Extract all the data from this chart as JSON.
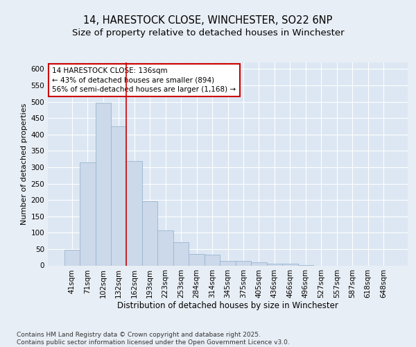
{
  "title": "14, HARESTOCK CLOSE, WINCHESTER, SO22 6NP",
  "subtitle": "Size of property relative to detached houses in Winchester",
  "xlabel": "Distribution of detached houses by size in Winchester",
  "ylabel": "Number of detached properties",
  "categories": [
    "41sqm",
    "71sqm",
    "102sqm",
    "132sqm",
    "162sqm",
    "193sqm",
    "223sqm",
    "253sqm",
    "284sqm",
    "314sqm",
    "345sqm",
    "375sqm",
    "405sqm",
    "436sqm",
    "466sqm",
    "496sqm",
    "527sqm",
    "557sqm",
    "587sqm",
    "618sqm",
    "648sqm"
  ],
  "values": [
    47,
    314,
    498,
    424,
    320,
    196,
    106,
    70,
    35,
    33,
    13,
    13,
    9,
    6,
    5,
    1,
    0,
    0,
    0,
    0,
    0
  ],
  "bar_color": "#ccd9ea",
  "bar_edgecolor": "#9ab5d0",
  "vline_x_index": 3,
  "vline_color": "#cc0000",
  "annotation_text": "14 HARESTOCK CLOSE: 136sqm\n← 43% of detached houses are smaller (894)\n56% of semi-detached houses are larger (1,168) →",
  "annotation_box_color": "white",
  "annotation_box_edgecolor": "#cc0000",
  "ylim": [
    0,
    620
  ],
  "yticks": [
    0,
    50,
    100,
    150,
    200,
    250,
    300,
    350,
    400,
    450,
    500,
    550,
    600
  ],
  "background_color": "#e8eef5",
  "plot_background_color": "#dce7f3",
  "grid_color": "white",
  "footer_text": "Contains HM Land Registry data © Crown copyright and database right 2025.\nContains public sector information licensed under the Open Government Licence v3.0.",
  "title_fontsize": 10.5,
  "subtitle_fontsize": 9.5,
  "xlabel_fontsize": 8.5,
  "ylabel_fontsize": 8,
  "tick_fontsize": 7.5,
  "annotation_fontsize": 7.5,
  "footer_fontsize": 6.5
}
